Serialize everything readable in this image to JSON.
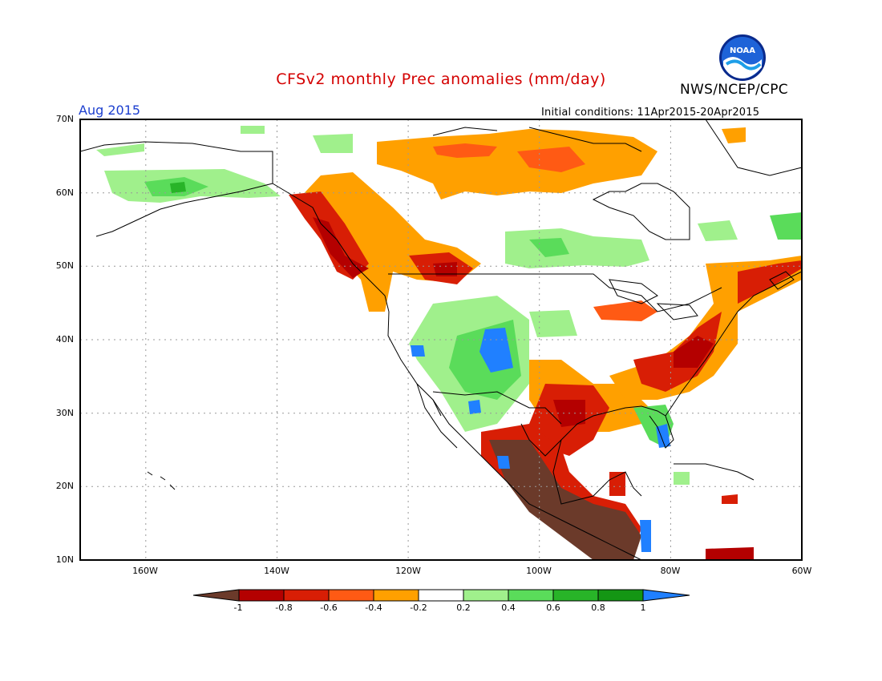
{
  "title": "CFSv2 monthly Prec anomalies (mm/day)",
  "agency": "NWS/NCEP/CPC",
  "logo_text": "NOAA",
  "target_month": "Aug 2015",
  "initial_conditions": "Initial conditions: 11Apr2015-20Apr2015",
  "lat_labels": [
    "70N",
    "60N",
    "50N",
    "40N",
    "30N",
    "20N",
    "10N"
  ],
  "lon_labels": [
    "160W",
    "140W",
    "120W",
    "100W",
    "80W",
    "60W"
  ],
  "colorbar": {
    "labels": [
      "-1",
      "-0.8",
      "-0.6",
      "-0.4",
      "-0.2",
      "0.2",
      "0.4",
      "0.6",
      "0.8",
      "1"
    ],
    "colors": [
      "#6b3a2a",
      "#b40000",
      "#d81e05",
      "#ff5a14",
      "#ffa000",
      "#ffffff",
      "#a0f08c",
      "#5adc5a",
      "#28b428",
      "#149614",
      "#2080ff"
    ]
  },
  "anomaly_regions": [
    {
      "area": "Mexico west coast and Central America",
      "category": "-1"
    },
    {
      "area": "Pacific Northwest and British Columbia coast",
      "category": "-0.8"
    },
    {
      "area": "Texas and Gulf coast",
      "category": "-0.6"
    },
    {
      "area": "US Mid-Atlantic and Southeast",
      "category": "-0.6"
    },
    {
      "area": "Northern Canada",
      "category": "-0.4"
    },
    {
      "area": "US Southwest and Four Corners",
      "category": "1"
    },
    {
      "area": "South Florida",
      "category": "1"
    },
    {
      "area": "Alaska",
      "category": "0.4"
    },
    {
      "area": "Northern Plains and central Canada",
      "category": "0.2"
    }
  ]
}
